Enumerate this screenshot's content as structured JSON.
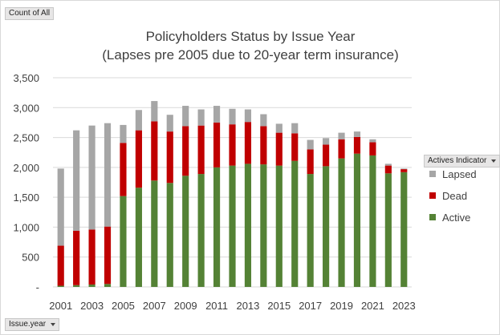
{
  "field_buttons": {
    "values": "Count of All",
    "axis": "Issue.year",
    "legend": "Actives Indicator"
  },
  "chart_data": {
    "type": "bar",
    "stacked": true,
    "title": "Policyholders Status by Issue Year",
    "subtitle": "(Lapses pre 2005 due to 20-year term insurance)",
    "xlabel": "",
    "ylabel": "",
    "ylim": [
      0,
      3500
    ],
    "yticks": [
      0,
      500,
      1000,
      1500,
      2000,
      2500,
      3000,
      3500
    ],
    "ytick_labels": [
      "-",
      "500",
      "1,000",
      "1,500",
      "2,000",
      "2,500",
      "3,000",
      "3,500"
    ],
    "xtick_labels": [
      "2001",
      "2003",
      "2005",
      "2007",
      "2009",
      "2011",
      "2013",
      "2015",
      "2017",
      "2019",
      "2021",
      "2023"
    ],
    "grid": true,
    "legend_position": "right",
    "categories": [
      "2001",
      "2002",
      "2003",
      "2004",
      "2005",
      "2006",
      "2007",
      "2008",
      "2009",
      "2010",
      "2011",
      "2012",
      "2013",
      "2014",
      "2015",
      "2016",
      "2017",
      "2018",
      "2019",
      "2020",
      "2021",
      "2022",
      "2023"
    ],
    "series": [
      {
        "name": "Active",
        "color": "#548235",
        "values": [
          20,
          30,
          40,
          50,
          1520,
          1660,
          1780,
          1740,
          1860,
          1890,
          2000,
          2030,
          2060,
          2050,
          2030,
          2110,
          1890,
          2020,
          2150,
          2230,
          2200,
          1900,
          1920
        ]
      },
      {
        "name": "Dead",
        "color": "#c00000",
        "values": [
          670,
          910,
          920,
          960,
          890,
          960,
          990,
          860,
          830,
          810,
          750,
          690,
          700,
          640,
          550,
          460,
          410,
          360,
          320,
          280,
          220,
          130,
          50
        ]
      },
      {
        "name": "Lapsed",
        "color": "#a6a6a6",
        "values": [
          1290,
          1680,
          1740,
          1730,
          300,
          340,
          340,
          280,
          340,
          270,
          280,
          260,
          210,
          200,
          150,
          170,
          160,
          110,
          110,
          90,
          50,
          30,
          10
        ]
      }
    ]
  }
}
